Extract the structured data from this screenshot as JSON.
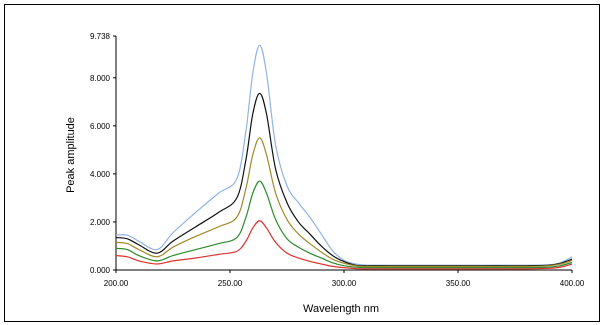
{
  "chart_data": {
    "type": "line",
    "title": "",
    "xlabel": "Wavelength nm",
    "ylabel": "Peak amplitude",
    "xlim": [
      200,
      400
    ],
    "ylim": [
      0,
      9.738
    ],
    "xticks": [
      "200.00",
      "250.00",
      "300.00",
      "350.00",
      "400.00"
    ],
    "xtick_values": [
      200,
      250,
      300,
      350,
      400
    ],
    "yticks": [
      "0.000",
      "2.000",
      "4.000",
      "6.000",
      "8.000",
      "9.738"
    ],
    "ytick_values": [
      0,
      2,
      4,
      6,
      8,
      9.738
    ],
    "grid": false,
    "legend": "none",
    "x": [
      200,
      205,
      210,
      218,
      225,
      235,
      245,
      253,
      257,
      260,
      263,
      266,
      270,
      275,
      280,
      285,
      290,
      295,
      300,
      305,
      310,
      320,
      340,
      360,
      380,
      390,
      395,
      400
    ],
    "series": [
      {
        "color": "#8fb4e3",
        "values": [
          1.45,
          1.45,
          1.2,
          0.85,
          1.55,
          2.4,
          3.2,
          3.8,
          5.8,
          8.2,
          9.35,
          8.2,
          5.2,
          3.5,
          2.8,
          2.2,
          1.5,
          0.8,
          0.4,
          0.25,
          0.2,
          0.2,
          0.2,
          0.2,
          0.2,
          0.22,
          0.3,
          0.55
        ]
      },
      {
        "color": "#111111",
        "values": [
          1.35,
          1.3,
          1.05,
          0.7,
          1.2,
          1.8,
          2.4,
          3.0,
          4.6,
          6.5,
          7.35,
          6.5,
          4.2,
          2.8,
          2.0,
          1.5,
          1.0,
          0.6,
          0.35,
          0.2,
          0.18,
          0.18,
          0.18,
          0.18,
          0.18,
          0.2,
          0.28,
          0.45
        ]
      },
      {
        "color": "#a08a2a",
        "values": [
          1.15,
          1.1,
          0.85,
          0.55,
          0.95,
          1.4,
          1.8,
          2.2,
          3.4,
          4.8,
          5.5,
          4.8,
          3.2,
          2.1,
          1.5,
          1.1,
          0.75,
          0.45,
          0.28,
          0.18,
          0.15,
          0.15,
          0.15,
          0.15,
          0.15,
          0.18,
          0.25,
          0.4
        ]
      },
      {
        "color": "#2e8b2e",
        "values": [
          0.9,
          0.85,
          0.6,
          0.38,
          0.6,
          0.85,
          1.1,
          1.35,
          2.2,
          3.2,
          3.7,
          3.2,
          2.1,
          1.3,
          0.95,
          0.7,
          0.5,
          0.3,
          0.18,
          0.12,
          0.1,
          0.1,
          0.1,
          0.1,
          0.1,
          0.12,
          0.18,
          0.32
        ]
      },
      {
        "color": "#e03030",
        "values": [
          0.6,
          0.55,
          0.38,
          0.25,
          0.38,
          0.5,
          0.65,
          0.78,
          1.2,
          1.75,
          2.05,
          1.75,
          1.15,
          0.7,
          0.5,
          0.36,
          0.25,
          0.15,
          0.1,
          0.06,
          0.05,
          0.05,
          0.05,
          0.05,
          0.05,
          0.07,
          0.12,
          0.25
        ]
      }
    ]
  }
}
